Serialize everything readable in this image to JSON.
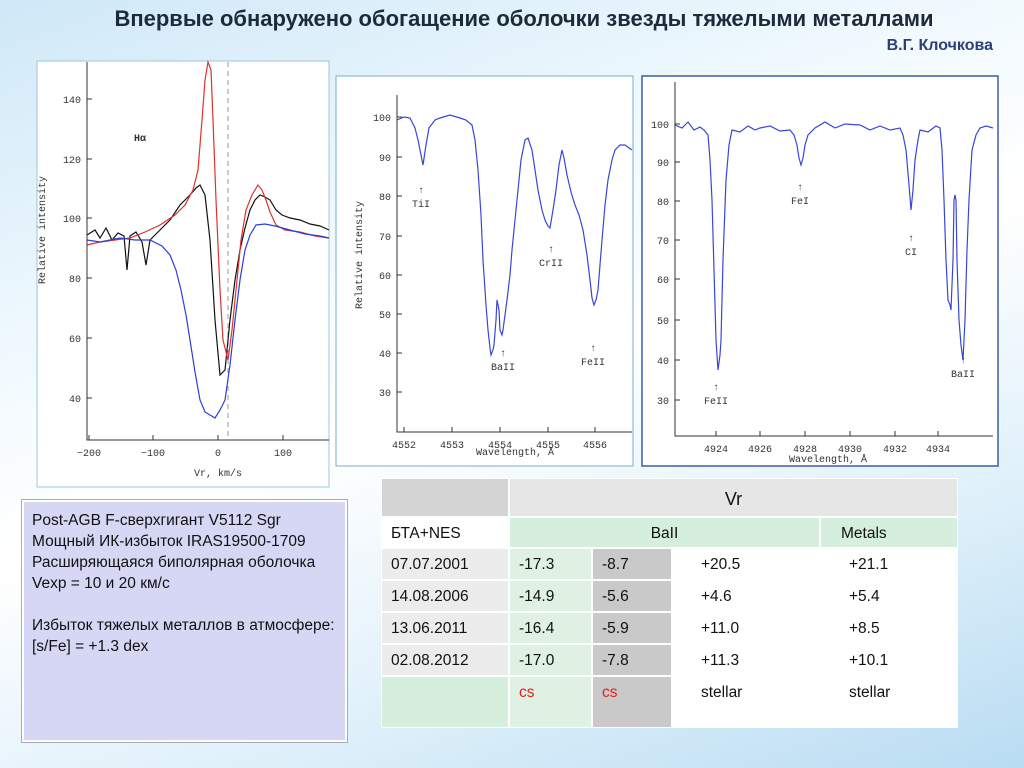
{
  "header": {
    "title": "Впервые обнаружено обогащение оболочки звезды  тяжелыми металлами",
    "author": "В.Г. Клочкова"
  },
  "plots": [
    {
      "label": "Hα",
      "y_axis_label": "Relative intensity",
      "x_axis_label": "Vr, km/s",
      "y_ticks": [
        "40",
        "60",
        "80",
        "100",
        "120",
        "140"
      ],
      "x_ticks": [
        "−200",
        "−100",
        "0",
        "100"
      ]
    },
    {
      "y_axis_label": "Relative intensity",
      "x_axis_label": "Wavelength, Å",
      "y_ticks": [
        "30",
        "40",
        "50",
        "60",
        "70",
        "80",
        "90",
        "100"
      ],
      "x_ticks": [
        "4552",
        "4553",
        "4554",
        "4555",
        "4556"
      ],
      "annotations": [
        "TiI",
        "CrII",
        "BaII",
        "FeII"
      ]
    },
    {
      "x_axis_label": "Wavelength, Å",
      "y_ticks": [
        "30",
        "40",
        "50",
        "60",
        "70",
        "80",
        "90",
        "100"
      ],
      "x_ticks": [
        "4924",
        "4926",
        "4928",
        "4930",
        "4932",
        "4934"
      ],
      "annotations": [
        "FeII",
        "FeI",
        "CI",
        "BaII"
      ]
    }
  ],
  "info_box": {
    "paragraphs": [
      "Post-AGB  F-сверхгигант  V5112 Sgr",
      "Мощный ИК-избыток IRAS19500-1709",
      "Расширяющаяся  биполярная оболочка    Vexp = 10 и 20 км/с",
      "Избыток тяжелых металлов в атмосфере: [s/Fe] = +1.3 dex"
    ]
  },
  "table": {
    "header": "Vr",
    "subheader": [
      "БТА+NES",
      "BaII",
      "Metals"
    ],
    "rows": [
      [
        "07.07.2001",
        "-17.3",
        "-8.7",
        "+20.5",
        "+21.1"
      ],
      [
        "14.08.2006",
        "-14.9",
        "-5.6",
        "+4.6",
        "+5.4"
      ],
      [
        "13.06.2011",
        "-16.4",
        "-5.9",
        "+11.0",
        "+8.5"
      ],
      [
        "02.08.2012",
        "-17.0",
        "-7.8",
        "+11.3",
        "+10.1"
      ]
    ],
    "last_row": [
      "cs",
      "cs",
      "stellar",
      "stellar"
    ]
  }
}
